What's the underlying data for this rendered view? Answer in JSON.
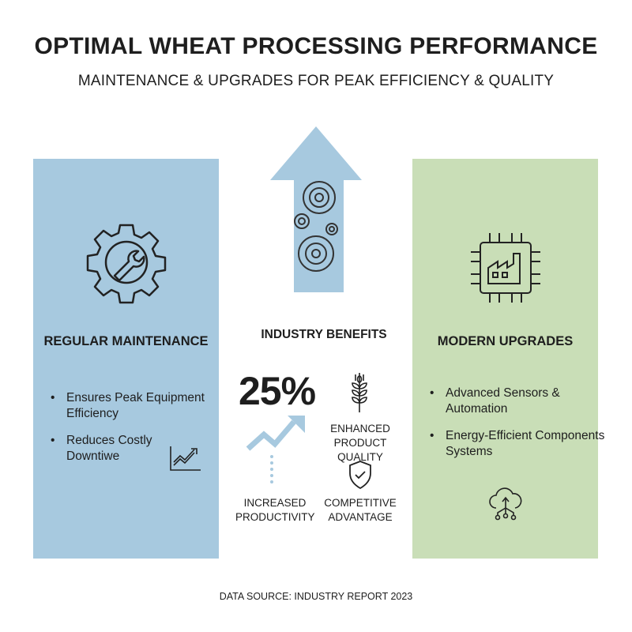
{
  "title": "OPTIMAL WHEAT PROCESSING PERFORMANCE",
  "subtitle": "MAINTENANCE & UPGRADES FOR PEAK EFFICIENCY & QUALITY",
  "colors": {
    "maintenance_panel": "#a7c9df",
    "upgrades_panel": "#c9deb7",
    "arrow": "#a7c9df"
  },
  "left_panel": {
    "heading": "REGULAR MAINTENANCE",
    "icon": "gear-wrench-icon",
    "bullets": [
      "Ensures Peak Equipment Efficiency",
      "Reduces Costly Downtiwe"
    ],
    "chart_icon": "trend-chart-icon"
  },
  "center": {
    "arrow_icon": "up-arrow-gears-icon",
    "heading": "INDUSTRY BENEFITS",
    "stat": "25%",
    "benefits": [
      {
        "label_line1": "INCREASED",
        "label_line2": "PRODUCTIVITY",
        "icon": "trend-arrow-icon"
      },
      {
        "label_line1": "ENHANCED",
        "label_line2": "PRODUCT QUALITY",
        "icon": "wheat-icon"
      },
      {
        "label_line1": "COMPETITIVE",
        "label_line2": "ADVANTAGE",
        "icon": "shield-check-icon"
      }
    ]
  },
  "right_panel": {
    "heading": "MODERN UPGRADES",
    "icon": "chip-factory-icon",
    "bullets": [
      "Advanced Sensors & Automation",
      "Energy-Efficient Components Systems"
    ],
    "bottom_icon": "cloud-network-icon"
  },
  "footer": "DATA SOURCE: INDUSTRY REPORT 2023"
}
